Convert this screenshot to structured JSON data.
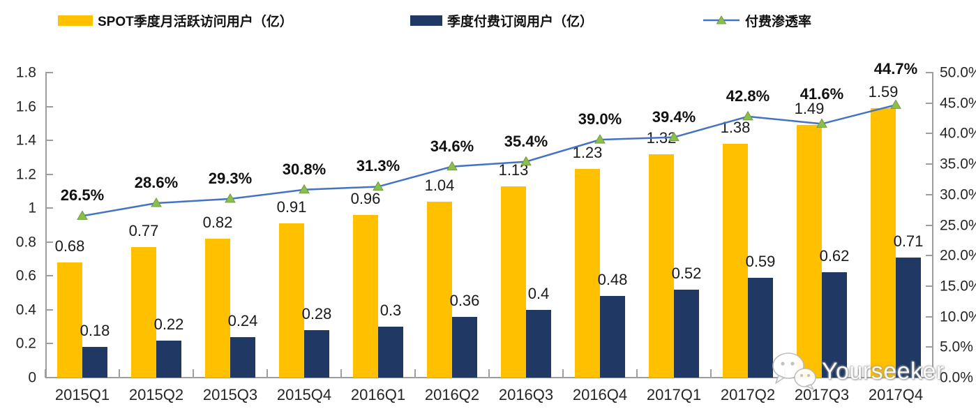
{
  "legend": {
    "items": [
      {
        "label": "SPOT季度月活跃访问用户（亿）",
        "color": "#FFC000"
      },
      {
        "label": "季度付费订阅用户（亿）",
        "color": "#1F3864"
      },
      {
        "label": "付费渗透率",
        "line_color": "#4472C4",
        "marker_color": "#8CBE4E",
        "marker_edge": "#6F9C3D"
      }
    ]
  },
  "watermark": {
    "text": "Yourseeker",
    "icon": "wechat-icon"
  },
  "chart_data": {
    "type": "bar",
    "subtype": "grouped-bars-with-line-combo",
    "title": "",
    "categories": [
      "2015Q1",
      "2015Q2",
      "2015Q3",
      "2015Q4",
      "2016Q1",
      "2016Q2",
      "2016Q3",
      "2016Q4",
      "2017Q1",
      "2017Q2",
      "2017Q3",
      "2017Q4"
    ],
    "series": [
      {
        "name": "SPOT季度月活跃访问用户（亿）",
        "type": "bar",
        "axis": "left",
        "color": "#FFC000",
        "values": [
          0.68,
          0.77,
          0.82,
          0.91,
          0.96,
          1.04,
          1.13,
          1.23,
          1.32,
          1.38,
          1.49,
          1.59
        ],
        "labels": [
          "0.68",
          "0.77",
          "0.82",
          "0.91",
          "0.96",
          "1.04",
          "1.13",
          "1.23",
          "1.32",
          "1.38",
          "1.49",
          "1.59"
        ]
      },
      {
        "name": "季度付费订阅用户（亿）",
        "type": "bar",
        "axis": "left",
        "color": "#1F3864",
        "values": [
          0.18,
          0.22,
          0.24,
          0.28,
          0.3,
          0.36,
          0.4,
          0.48,
          0.52,
          0.59,
          0.62,
          0.71
        ],
        "labels": [
          "0.18",
          "0.22",
          "0.24",
          "0.28",
          "0.3",
          "0.36",
          "0.4",
          "0.48",
          "0.52",
          "0.59",
          "0.62",
          "0.71"
        ]
      },
      {
        "name": "付费渗透率",
        "type": "line",
        "axis": "right",
        "color": "#4472C4",
        "marker": "triangle",
        "marker_color": "#8CBE4E",
        "marker_edge": "#6F9C3D",
        "values": [
          26.5,
          28.6,
          29.3,
          30.8,
          31.3,
          34.6,
          35.4,
          39.0,
          39.4,
          42.8,
          41.6,
          44.7
        ],
        "labels": [
          "26.5%",
          "28.6%",
          "29.3%",
          "30.8%",
          "31.3%",
          "34.6%",
          "35.4%",
          "39.0%",
          "39.4%",
          "42.8%",
          "41.6%",
          "44.7%"
        ]
      }
    ],
    "left_axis": {
      "min": 0,
      "max": 1.8,
      "step": 0.2,
      "ticks": [
        "0",
        "0.2",
        "0.4",
        "0.6",
        "0.8",
        "1",
        "1.2",
        "1.4",
        "1.6",
        "1.8"
      ]
    },
    "right_axis": {
      "min": 0,
      "max": 50,
      "step": 5,
      "ticks": [
        "0.0%",
        "5.0%",
        "10.0%",
        "15.0%",
        "20.0%",
        "25.0%",
        "30.0%",
        "35.0%",
        "40.0%",
        "45.0%",
        "50.0%"
      ]
    },
    "grid": false,
    "legend_position": "top",
    "axis_color": "#9e9e9e"
  }
}
